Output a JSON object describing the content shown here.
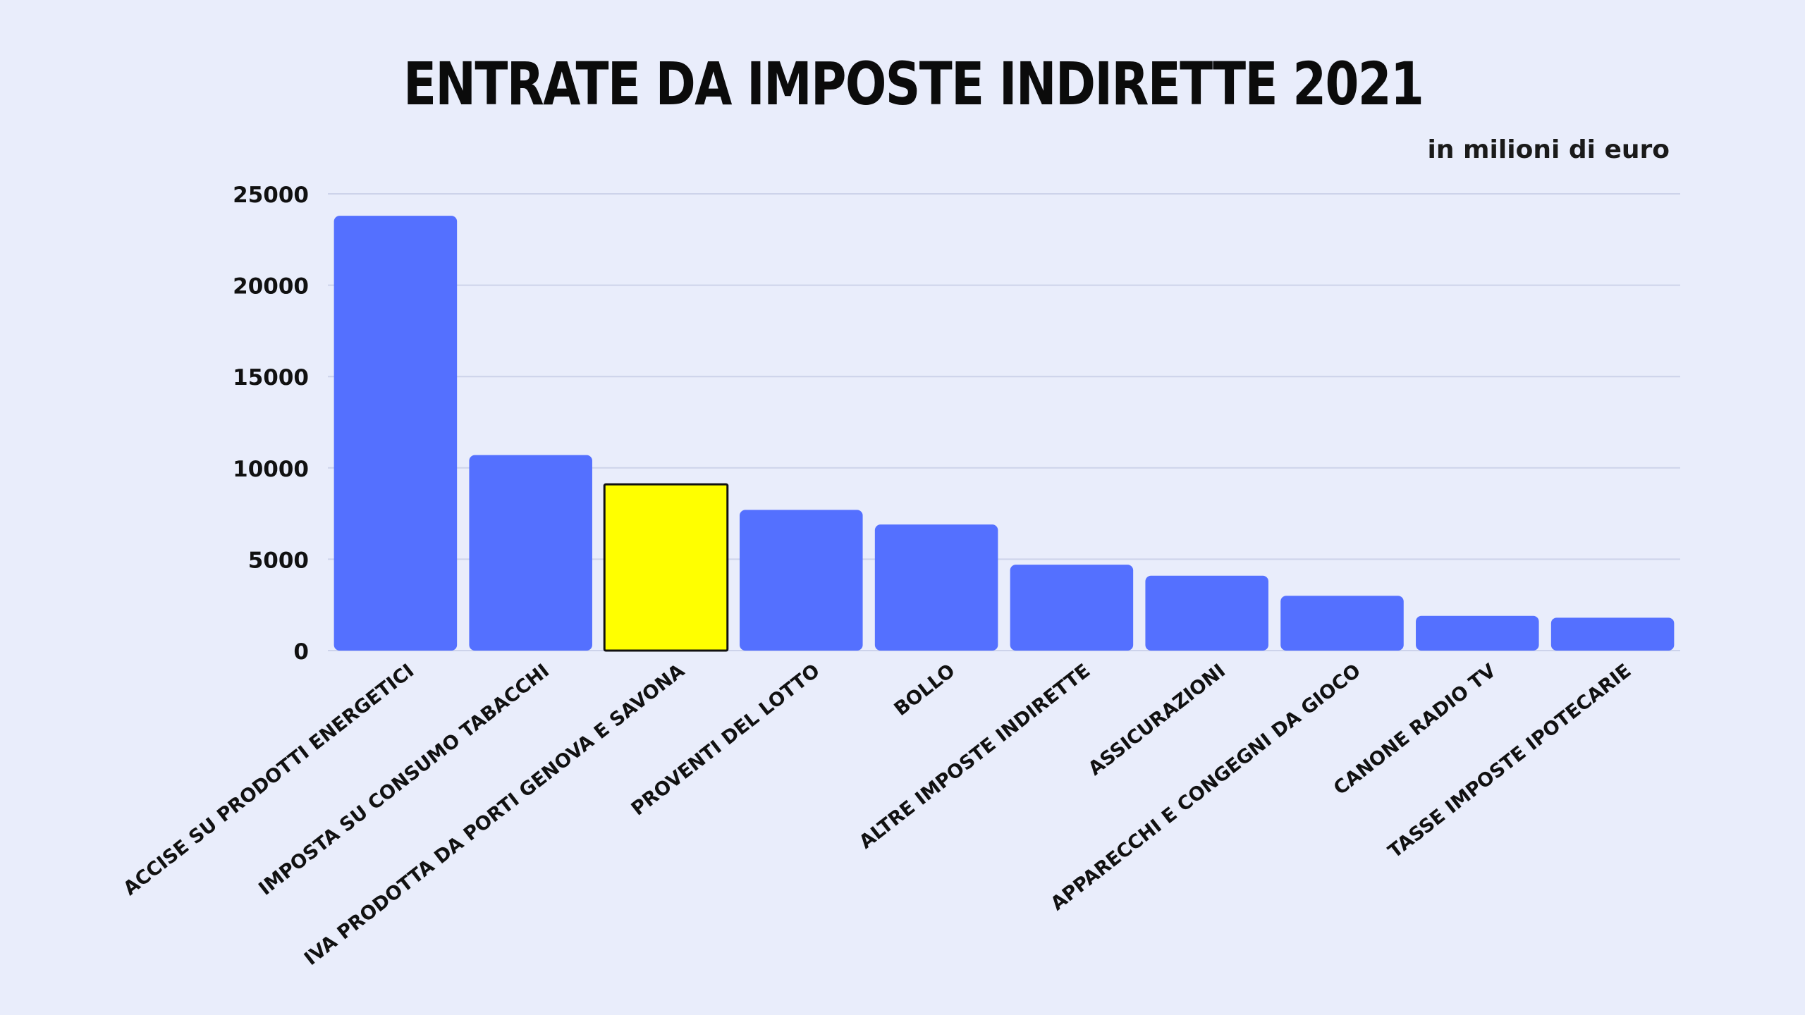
{
  "chart_data": {
    "type": "bar",
    "title": "ENTRATE DA IMPOSTE INDIRETTE 2021",
    "subtitle": "in milioni di euro",
    "xlabel": "",
    "ylabel": "",
    "ylim": [
      0,
      25000
    ],
    "yticks": [
      0,
      5000,
      10000,
      15000,
      20000,
      25000
    ],
    "grid": true,
    "categories": [
      "ACCISE SU PRODOTTI ENERGETICI",
      "IMPOSTA SU CONSUMO TABACCHI",
      "IVA PRODOTTA DA PORTI GENOVA E SAVONA",
      "PROVENTI DEL LOTTO",
      "BOLLO",
      "ALTRE IMPOSTE INDIRETTE",
      "ASSICURAZIONI",
      "APPARECCHI E CONGEGNI DA GIOCO",
      "CANONE RADIO TV",
      "TASSE IMPOSTE IPOTECARIE"
    ],
    "values": [
      23800,
      10700,
      9100,
      7700,
      6900,
      4700,
      4100,
      3000,
      1900,
      1800
    ],
    "colors": {
      "bar": "#5470ff",
      "highlight": "#ffff00",
      "highlight_border": "#111111",
      "grid": "#cdd3ea",
      "background": "#e9edfb"
    },
    "highlight_index": 2
  }
}
